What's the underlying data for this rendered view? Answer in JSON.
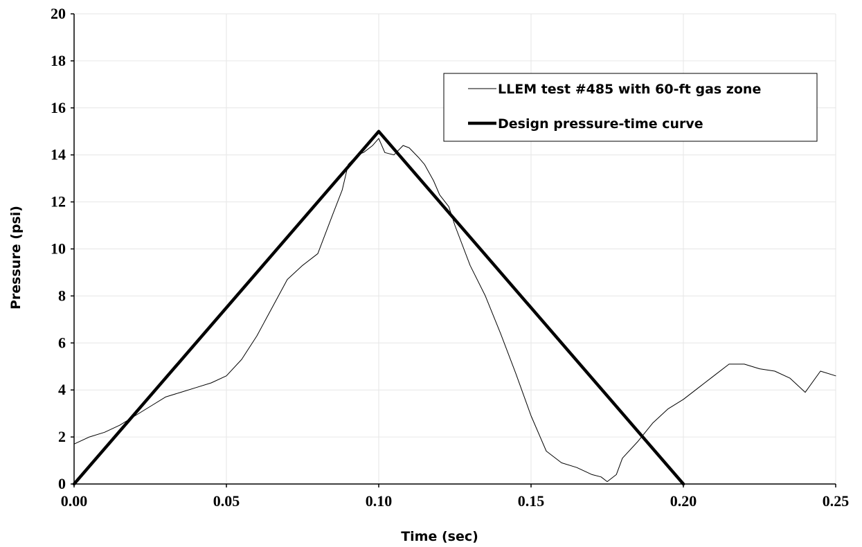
{
  "chart_data": {
    "type": "line",
    "title": "",
    "xlabel": "Time (sec)",
    "ylabel": "Pressure (psi)",
    "xlim": [
      0,
      0.25
    ],
    "ylim": [
      0,
      20
    ],
    "x_ticks": [
      "0.00",
      "0.05",
      "0.10",
      "0.15",
      "0.20",
      "0.25"
    ],
    "y_ticks": [
      "0",
      "2",
      "4",
      "6",
      "8",
      "10",
      "12",
      "14",
      "16",
      "18",
      "20"
    ],
    "grid": true,
    "legend_position": "top-right",
    "series": [
      {
        "name": "LLEM test #485 with 60-ft gas zone",
        "color": "#000000",
        "style": "thin",
        "x": [
          0.0,
          0.005,
          0.01,
          0.015,
          0.02,
          0.025,
          0.03,
          0.035,
          0.04,
          0.045,
          0.05,
          0.055,
          0.06,
          0.065,
          0.07,
          0.075,
          0.08,
          0.085,
          0.088,
          0.09,
          0.093,
          0.095,
          0.098,
          0.1,
          0.102,
          0.105,
          0.108,
          0.11,
          0.113,
          0.115,
          0.118,
          0.12,
          0.123,
          0.125,
          0.13,
          0.135,
          0.14,
          0.145,
          0.15,
          0.155,
          0.16,
          0.165,
          0.17,
          0.173,
          0.175,
          0.178,
          0.18,
          0.185,
          0.19,
          0.195,
          0.2,
          0.205,
          0.21,
          0.215,
          0.22,
          0.225,
          0.23,
          0.235,
          0.24,
          0.245,
          0.25
        ],
        "y": [
          1.7,
          2.0,
          2.2,
          2.5,
          2.9,
          3.3,
          3.7,
          3.9,
          4.1,
          4.3,
          4.6,
          5.3,
          6.3,
          7.5,
          8.7,
          9.3,
          9.8,
          11.5,
          12.5,
          13.6,
          14.0,
          14.1,
          14.4,
          14.7,
          14.1,
          14.0,
          14.4,
          14.3,
          13.9,
          13.6,
          12.9,
          12.3,
          11.8,
          11.0,
          9.3,
          8.0,
          6.4,
          4.7,
          2.9,
          1.4,
          0.9,
          0.7,
          0.4,
          0.3,
          0.1,
          0.4,
          1.1,
          1.8,
          2.6,
          3.2,
          3.6,
          4.1,
          4.6,
          5.1,
          5.1,
          4.9,
          4.8,
          4.5,
          3.9,
          4.8,
          4.6
        ]
      },
      {
        "name": "Design pressure-time curve",
        "color": "#000000",
        "style": "thick",
        "x": [
          0.0,
          0.1,
          0.2
        ],
        "y": [
          0,
          15,
          0
        ]
      }
    ]
  }
}
